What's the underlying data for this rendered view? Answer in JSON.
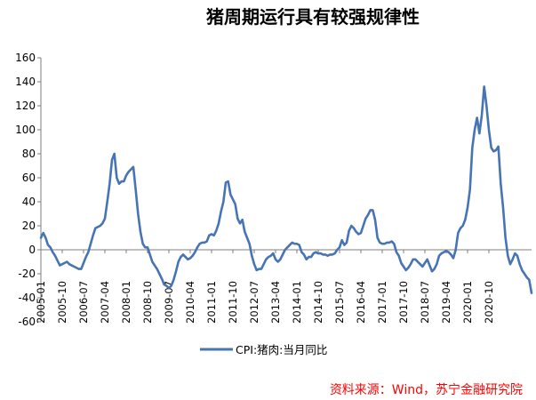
{
  "chart_data": {
    "type": "line",
    "title": "猪周期运行具有较强规律性",
    "xlabel": "",
    "ylabel": "",
    "ylim": [
      -60,
      160
    ],
    "yticks": [
      160,
      140,
      120,
      100,
      80,
      60,
      40,
      20,
      0,
      -20,
      -40,
      -60
    ],
    "grid": false,
    "legend_position": "bottom-center",
    "source": "资料来源：Wind，苏宁金融研究院",
    "x_tick_labels": [
      "2005-01",
      "2005-10",
      "2006-07",
      "2007-04",
      "2008-01",
      "2008-10",
      "2009-07",
      "2010-04",
      "2011-01",
      "2011-10",
      "2012-07",
      "2013-04",
      "2014-01",
      "2014-10",
      "2015-07",
      "2016-04",
      "2017-01",
      "2017-10",
      "2018-07",
      "2019-04",
      "2020-01",
      "2020-10"
    ],
    "x_start": "2005-01",
    "series": [
      {
        "name": "CPI:猪肉:当月同比",
        "color": "#4674b4",
        "values": [
          10,
          14,
          10,
          4,
          2,
          -2,
          -5,
          -9,
          -13,
          -12,
          -11,
          -10,
          -12,
          -13,
          -14,
          -15,
          -16,
          -16,
          -11,
          -6,
          -2,
          5,
          12,
          18,
          19,
          20,
          22,
          26,
          40,
          55,
          75,
          80,
          60,
          55,
          57,
          57,
          62,
          65,
          67,
          69,
          50,
          30,
          15,
          5,
          2,
          2,
          -4,
          -10,
          -13,
          -16,
          -20,
          -24,
          -29,
          -30,
          -32,
          -30,
          -25,
          -18,
          -10,
          -6,
          -4,
          -6,
          -8,
          -7,
          -5,
          -2,
          2,
          5,
          6,
          6,
          7,
          12,
          13,
          12,
          16,
          22,
          32,
          40,
          56,
          57,
          46,
          42,
          38,
          26,
          22,
          25,
          15,
          10,
          5,
          -5,
          -12,
          -17,
          -16,
          -16,
          -12,
          -8,
          -6,
          -5,
          -3,
          -8,
          -10,
          -8,
          -4,
          0,
          2,
          4,
          6,
          5,
          5,
          4,
          -2,
          -4,
          -8,
          -6,
          -6,
          -3,
          -2,
          -3,
          -3,
          -4,
          -4,
          -5,
          -4,
          -4,
          -3,
          0,
          2,
          8,
          4,
          6,
          16,
          20,
          18,
          15,
          13,
          14,
          20,
          26,
          29,
          33,
          33,
          25,
          10,
          6,
          5,
          5,
          6,
          6,
          7,
          5,
          -2,
          -5,
          -11,
          -14,
          -17,
          -15,
          -12,
          -8,
          -8,
          -10,
          -12,
          -14,
          -11,
          -8,
          -13,
          -18,
          -16,
          -12,
          -5,
          -3,
          -2,
          -1,
          -2,
          -4,
          -7,
          0,
          14,
          18,
          20,
          25,
          35,
          50,
          85,
          100,
          110,
          97,
          112,
          136,
          120,
          100,
          85,
          82,
          83,
          86,
          55,
          35,
          10,
          -5,
          -12,
          -8,
          -3,
          -5,
          -12,
          -17,
          -20,
          -23,
          -25,
          -36
        ]
      }
    ]
  }
}
